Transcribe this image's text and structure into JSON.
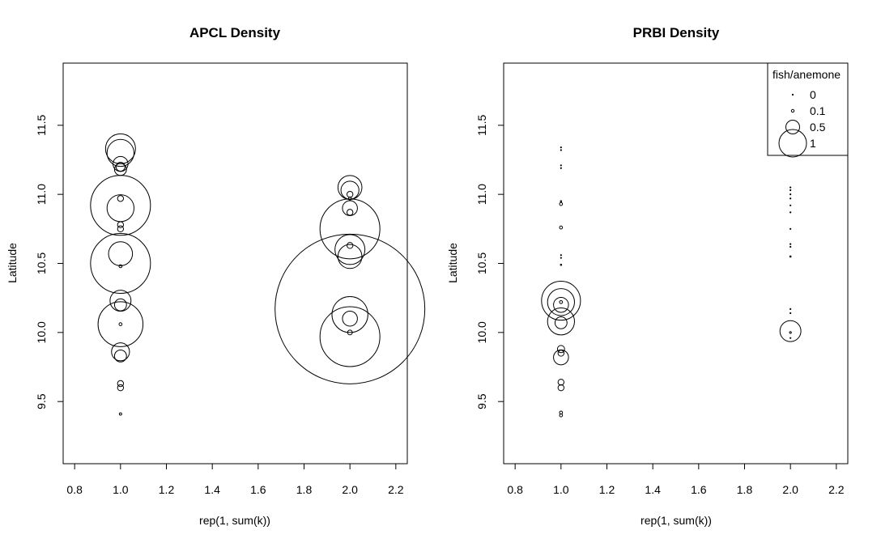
{
  "chart_data": [
    {
      "type": "scatter",
      "title": "APCL Density",
      "xlabel": "rep(1, sum(k))",
      "ylabel": "Latitude",
      "xlim": [
        0.75,
        2.25
      ],
      "ylim": [
        9.05,
        11.95
      ],
      "xticks": [
        "0.8",
        "1.0",
        "1.2",
        "1.4",
        "1.6",
        "1.8",
        "2.0",
        "2.2"
      ],
      "yticks": [
        "9.5",
        "10.0",
        "10.5",
        "11.0",
        "11.5"
      ],
      "grid": false,
      "points": [
        {
          "x": 1.0,
          "y": 11.33,
          "size": 0.5
        },
        {
          "x": 1.0,
          "y": 11.3,
          "size": 0.45
        },
        {
          "x": 1.0,
          "y": 11.22,
          "size": 0.25
        },
        {
          "x": 1.0,
          "y": 11.18,
          "size": 0.2
        },
        {
          "x": 1.0,
          "y": 11.2,
          "size": 0.15
        },
        {
          "x": 1.0,
          "y": 10.92,
          "size": 1.0
        },
        {
          "x": 1.0,
          "y": 10.9,
          "size": 0.45
        },
        {
          "x": 1.0,
          "y": 10.97,
          "size": 0.1
        },
        {
          "x": 1.0,
          "y": 10.78,
          "size": 0.1
        },
        {
          "x": 1.0,
          "y": 10.75,
          "size": 0.1
        },
        {
          "x": 1.0,
          "y": 10.57,
          "size": 0.4
        },
        {
          "x": 1.0,
          "y": 10.5,
          "size": 1.0
        },
        {
          "x": 1.0,
          "y": 10.48,
          "size": 0.05
        },
        {
          "x": 1.0,
          "y": 10.23,
          "size": 0.35
        },
        {
          "x": 1.0,
          "y": 10.2,
          "size": 0.2
        },
        {
          "x": 1.0,
          "y": 10.06,
          "size": 0.05
        },
        {
          "x": 1.0,
          "y": 10.06,
          "size": 0.75
        },
        {
          "x": 1.0,
          "y": 9.86,
          "size": 0.3
        },
        {
          "x": 1.0,
          "y": 9.83,
          "size": 0.2
        },
        {
          "x": 1.0,
          "y": 9.63,
          "size": 0.1
        },
        {
          "x": 1.0,
          "y": 9.6,
          "size": 0.1
        },
        {
          "x": 1.0,
          "y": 9.41,
          "size": 0.04
        },
        {
          "x": 2.0,
          "y": 11.05,
          "size": 0.4
        },
        {
          "x": 2.0,
          "y": 11.03,
          "size": 0.3
        },
        {
          "x": 2.0,
          "y": 11.0,
          "size": 0.1
        },
        {
          "x": 2.0,
          "y": 10.97,
          "size": 0.05
        },
        {
          "x": 2.0,
          "y": 10.9,
          "size": 0.25
        },
        {
          "x": 2.0,
          "y": 10.87,
          "size": 0.1
        },
        {
          "x": 2.0,
          "y": 10.75,
          "size": 1.0
        },
        {
          "x": 2.0,
          "y": 10.6,
          "size": 0.5
        },
        {
          "x": 2.0,
          "y": 10.55,
          "size": 0.4
        },
        {
          "x": 2.0,
          "y": 10.63,
          "size": 0.1
        },
        {
          "x": 2.0,
          "y": 10.17,
          "size": 2.5
        },
        {
          "x": 2.0,
          "y": 10.13,
          "size": 0.6
        },
        {
          "x": 2.0,
          "y": 10.1,
          "size": 0.25
        },
        {
          "x": 2.0,
          "y": 9.97,
          "size": 1.0
        },
        {
          "x": 2.0,
          "y": 10.0,
          "size": 0.08
        }
      ]
    },
    {
      "type": "scatter",
      "title": "PRBI Density",
      "xlabel": "rep(1, sum(k))",
      "ylabel": "Latitude",
      "xlim": [
        0.75,
        2.25
      ],
      "ylim": [
        9.05,
        11.95
      ],
      "xticks": [
        "0.8",
        "1.0",
        "1.2",
        "1.4",
        "1.6",
        "1.8",
        "2.0",
        "2.2"
      ],
      "yticks": [
        "9.5",
        "10.0",
        "10.5",
        "11.0",
        "11.5"
      ],
      "grid": false,
      "legend": {
        "title": "fish/anemone",
        "placement": "top-right",
        "entries": [
          {
            "label": "0",
            "size": 0
          },
          {
            "label": "0.1",
            "size": 0.1
          },
          {
            "label": "0.5",
            "size": 0.5
          },
          {
            "label": "1",
            "size": 1
          }
        ]
      },
      "points": [
        {
          "x": 1.0,
          "y": 11.34,
          "size": 0
        },
        {
          "x": 1.0,
          "y": 11.32,
          "size": 0
        },
        {
          "x": 1.0,
          "y": 11.21,
          "size": 0
        },
        {
          "x": 1.0,
          "y": 11.19,
          "size": 0
        },
        {
          "x": 1.0,
          "y": 10.95,
          "size": 0.02
        },
        {
          "x": 1.0,
          "y": 10.93,
          "size": 0.05
        },
        {
          "x": 1.0,
          "y": 10.76,
          "size": 0.05
        },
        {
          "x": 1.0,
          "y": 10.56,
          "size": 0
        },
        {
          "x": 1.0,
          "y": 10.54,
          "size": 0
        },
        {
          "x": 1.0,
          "y": 10.49,
          "size": 0.02
        },
        {
          "x": 1.0,
          "y": 10.23,
          "size": 0.65
        },
        {
          "x": 1.0,
          "y": 10.22,
          "size": 0.45
        },
        {
          "x": 1.0,
          "y": 10.2,
          "size": 0.25
        },
        {
          "x": 1.0,
          "y": 10.22,
          "size": 0.05
        },
        {
          "x": 1.0,
          "y": 10.08,
          "size": 0.45
        },
        {
          "x": 1.0,
          "y": 10.07,
          "size": 0.2
        },
        {
          "x": 1.0,
          "y": 9.88,
          "size": 0.12
        },
        {
          "x": 1.0,
          "y": 9.85,
          "size": 0.1
        },
        {
          "x": 1.0,
          "y": 9.82,
          "size": 0.25
        },
        {
          "x": 1.0,
          "y": 9.64,
          "size": 0.1
        },
        {
          "x": 1.0,
          "y": 9.6,
          "size": 0.1
        },
        {
          "x": 1.0,
          "y": 9.42,
          "size": 0.05
        },
        {
          "x": 1.0,
          "y": 9.4,
          "size": 0.05
        },
        {
          "x": 2.0,
          "y": 11.05,
          "size": 0
        },
        {
          "x": 2.0,
          "y": 11.03,
          "size": 0
        },
        {
          "x": 2.0,
          "y": 11.0,
          "size": 0
        },
        {
          "x": 2.0,
          "y": 10.97,
          "size": 0
        },
        {
          "x": 2.0,
          "y": 10.92,
          "size": 0
        },
        {
          "x": 2.0,
          "y": 10.87,
          "size": 0
        },
        {
          "x": 2.0,
          "y": 10.75,
          "size": 0
        },
        {
          "x": 2.0,
          "y": 10.64,
          "size": 0
        },
        {
          "x": 2.0,
          "y": 10.62,
          "size": 0
        },
        {
          "x": 2.0,
          "y": 10.55,
          "size": 0.02
        },
        {
          "x": 2.0,
          "y": 10.17,
          "size": 0
        },
        {
          "x": 2.0,
          "y": 10.14,
          "size": 0
        },
        {
          "x": 2.0,
          "y": 10.01,
          "size": 0.35
        },
        {
          "x": 2.0,
          "y": 10.0,
          "size": 0.03
        },
        {
          "x": 2.0,
          "y": 9.96,
          "size": 0
        }
      ]
    }
  ]
}
